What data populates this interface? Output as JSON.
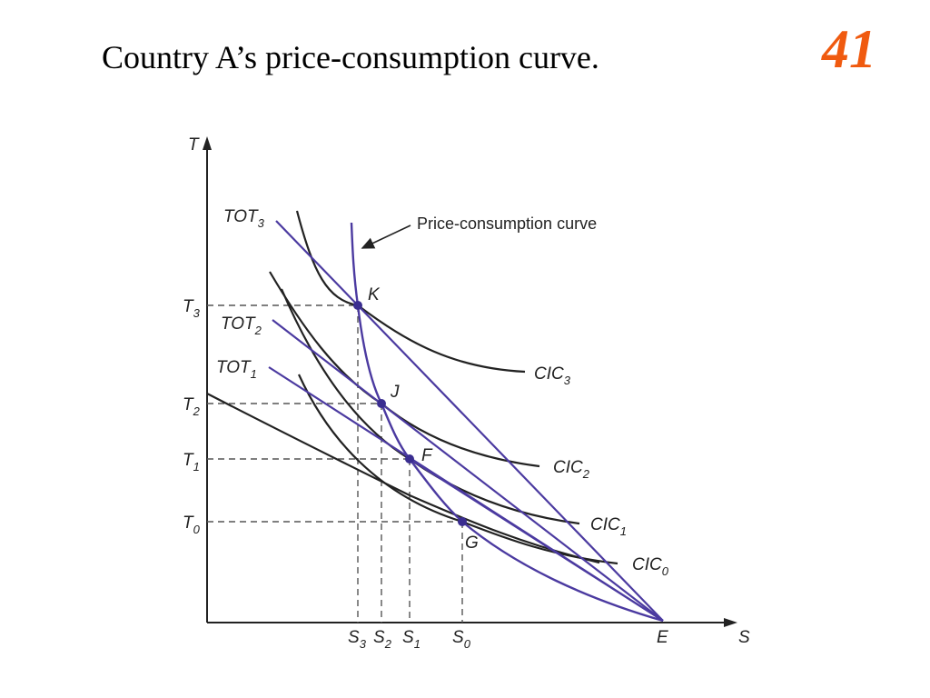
{
  "slide": {
    "title": "Country A’s price-consumption curve.",
    "number": "41"
  },
  "diagram": {
    "axis_y": "T",
    "axis_x": "S",
    "origin_point": "E",
    "pcc_label": "Price-consumption curve",
    "tot_lines": [
      {
        "base": "TOT",
        "sub": "3"
      },
      {
        "base": "TOT",
        "sub": "2"
      },
      {
        "base": "TOT",
        "sub": "1"
      }
    ],
    "cic_curves": [
      {
        "base": "CIC",
        "sub": "3"
      },
      {
        "base": "CIC",
        "sub": "2"
      },
      {
        "base": "CIC",
        "sub": "1"
      },
      {
        "base": "CIC",
        "sub": "0"
      }
    ],
    "points": [
      "K",
      "J",
      "F",
      "G"
    ],
    "y_ticks": [
      {
        "base": "T",
        "sub": "3"
      },
      {
        "base": "T",
        "sub": "2"
      },
      {
        "base": "T",
        "sub": "1"
      },
      {
        "base": "T",
        "sub": "0"
      }
    ],
    "x_ticks": [
      {
        "base": "S",
        "sub": "3"
      },
      {
        "base": "S",
        "sub": "2"
      },
      {
        "base": "S",
        "sub": "1"
      },
      {
        "base": "S",
        "sub": "0"
      }
    ],
    "colors": {
      "tot_line": "#4b3aa0",
      "pcc_curve": "#4b3aa0",
      "cic_curve": "#222222",
      "point": "#3a2d90",
      "slide_number": "#f05a0f"
    }
  }
}
